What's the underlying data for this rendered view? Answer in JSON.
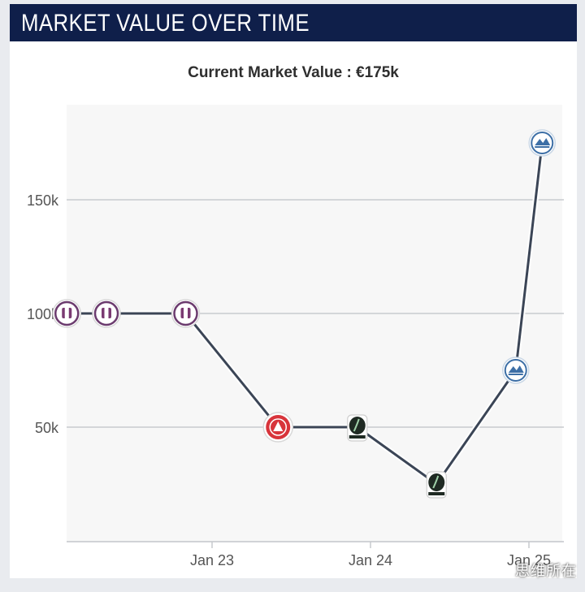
{
  "header": {
    "title": "MARKET VALUE OVER TIME"
  },
  "chart_title": "Current Market Value : €175k",
  "watermark": "思维所在",
  "colors": {
    "header_bg": "#0f1f4a",
    "line": "#3b4556",
    "plot_bg": "#f7f7f7",
    "grid": "#c9cbcf"
  },
  "chart_data": {
    "type": "line",
    "title": "Current Market Value : €175k",
    "xlabel": "",
    "ylabel": "",
    "x_ticks": [
      "Jan 23",
      "Jan 24",
      "Jan 25"
    ],
    "y_ticks": [
      "50k",
      "100k",
      "150k"
    ],
    "ylim": [
      0,
      190000
    ],
    "grid": true,
    "series": [
      {
        "points": [
          {
            "date": "2022-02",
            "value": 100000,
            "club_icon": "austria-lustenau-crest-icon"
          },
          {
            "date": "2022-05",
            "value": 100000,
            "club_icon": "austria-lustenau-crest-icon"
          },
          {
            "date": "2022-11",
            "value": 100000,
            "club_icon": "austria-lustenau-crest-icon"
          },
          {
            "date": "2023-06",
            "value": 50000,
            "club_icon": "red-club-crest-icon"
          },
          {
            "date": "2023-12",
            "value": 50000,
            "club_icon": "ried-crest-icon"
          },
          {
            "date": "2024-06",
            "value": 25000,
            "club_icon": "ried-crest-icon"
          },
          {
            "date": "2024-12",
            "value": 75000,
            "club_icon": "blue-club-crest-icon"
          },
          {
            "date": "2025-02",
            "value": 175000,
            "club_icon": "blue-club-crest-icon"
          }
        ]
      }
    ]
  }
}
